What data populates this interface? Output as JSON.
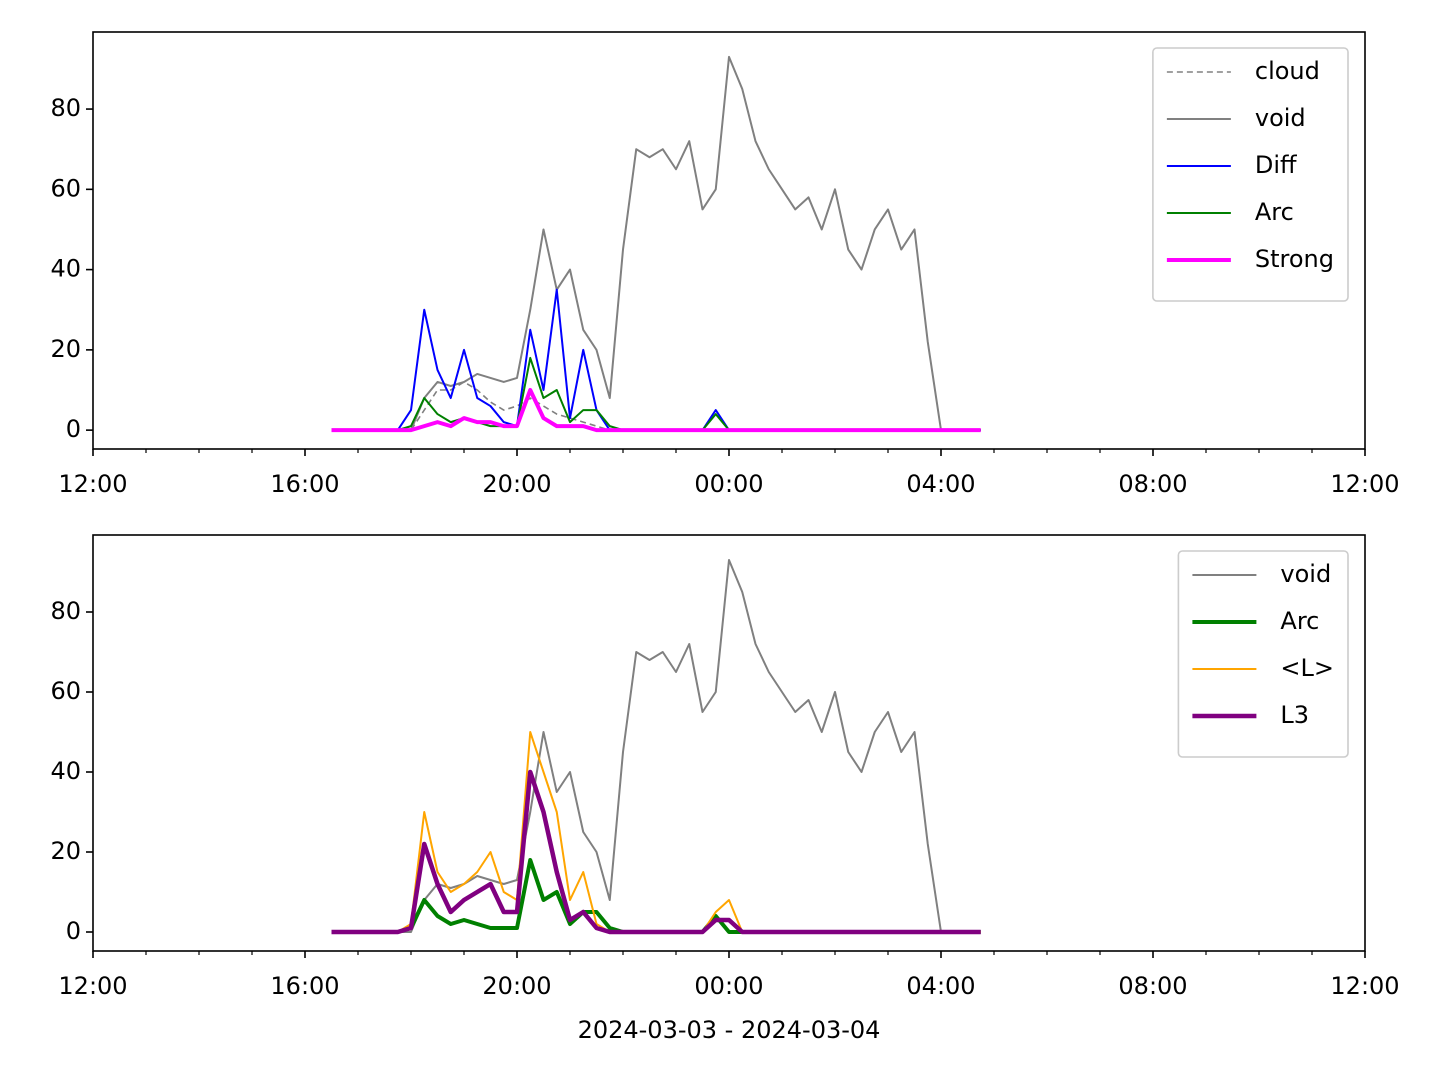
{
  "chart_data": [
    {
      "type": "line",
      "x": [
        16.5,
        16.75,
        17,
        17.25,
        17.5,
        17.75,
        18,
        18.25,
        18.5,
        18.75,
        19,
        19.25,
        19.5,
        19.75,
        20,
        20.25,
        20.5,
        20.75,
        21,
        21.25,
        21.5,
        21.75,
        22,
        22.25,
        22.5,
        22.75,
        23,
        23.25,
        23.5,
        23.75,
        24,
        24.25,
        24.5,
        24.75,
        25,
        25.25,
        25.5,
        25.75,
        26,
        26.25,
        26.5,
        26.75,
        27,
        27.25,
        27.5,
        27.75,
        28,
        28.25,
        28.5,
        28.75
      ],
      "series": [
        {
          "name": "cloud",
          "color": "#808080",
          "width": 1.6,
          "dash": true,
          "values": [
            0,
            0,
            0,
            0,
            0,
            0,
            0,
            5,
            10,
            10,
            12,
            10,
            7,
            5,
            6,
            8,
            6,
            4,
            3,
            2,
            1,
            0,
            0,
            0,
            0,
            0,
            0,
            0,
            0,
            0,
            0,
            0,
            0,
            0,
            0,
            0,
            0,
            0,
            0,
            0,
            0,
            0,
            0,
            0,
            0,
            0,
            0,
            0,
            0,
            0
          ]
        },
        {
          "name": "void",
          "color": "#808080",
          "width": 2,
          "values": [
            0,
            0,
            0,
            0,
            0,
            0,
            0,
            8,
            12,
            11,
            12,
            14,
            13,
            12,
            13,
            30,
            50,
            35,
            40,
            25,
            20,
            8,
            45,
            70,
            68,
            70,
            65,
            72,
            55,
            60,
            93,
            85,
            72,
            65,
            60,
            55,
            58,
            50,
            60,
            45,
            40,
            50,
            55,
            45,
            50,
            22,
            0,
            null,
            null,
            null
          ]
        },
        {
          "name": "Diff",
          "color": "#0000ff",
          "width": 2,
          "values": [
            0,
            0,
            0,
            0,
            0,
            0,
            5,
            30,
            15,
            8,
            20,
            8,
            6,
            2,
            1,
            25,
            10,
            35,
            3,
            20,
            5,
            0,
            0,
            0,
            0,
            0,
            0,
            0,
            0,
            5,
            0,
            0,
            0,
            0,
            0,
            0,
            0,
            0,
            0,
            0,
            0,
            0,
            0,
            0,
            0,
            0,
            0,
            0,
            0,
            0
          ]
        },
        {
          "name": "Arc",
          "color": "#008000",
          "width": 2,
          "values": [
            0,
            0,
            0,
            0,
            0,
            0,
            1,
            8,
            4,
            2,
            3,
            2,
            1,
            1,
            1,
            18,
            8,
            10,
            2,
            5,
            5,
            1,
            0,
            0,
            0,
            0,
            0,
            0,
            0,
            4,
            0,
            0,
            0,
            0,
            0,
            0,
            0,
            0,
            0,
            0,
            0,
            0,
            0,
            0,
            0,
            0,
            0,
            0,
            0,
            0
          ]
        },
        {
          "name": "Strong",
          "color": "#ff00ff",
          "width": 4,
          "values": [
            0,
            0,
            0,
            0,
            0,
            0,
            0,
            1,
            2,
            1,
            3,
            2,
            2,
            1,
            1,
            10,
            3,
            1,
            1,
            1,
            0,
            0,
            0,
            0,
            0,
            0,
            0,
            0,
            0,
            0,
            0,
            0,
            0,
            0,
            0,
            0,
            0,
            0,
            0,
            0,
            0,
            0,
            0,
            0,
            0,
            0,
            0,
            0,
            0,
            0
          ]
        }
      ],
      "xlim": [
        12,
        36
      ],
      "xticks": [
        {
          "value": 12,
          "label": "12:00"
        },
        {
          "value": 16,
          "label": "16:00"
        },
        {
          "value": 20,
          "label": "20:00"
        },
        {
          "value": 24,
          "label": "00:00"
        },
        {
          "value": 28,
          "label": "04:00"
        },
        {
          "value": 32,
          "label": "08:00"
        },
        {
          "value": 36,
          "label": "12:00"
        }
      ],
      "xminorticks": [
        13,
        14,
        15,
        17,
        18,
        19,
        21,
        22,
        23,
        25,
        26,
        27,
        29,
        30,
        31,
        33,
        34,
        35
      ],
      "ylim": [
        -4.7,
        99.2
      ],
      "yticks": [
        0,
        20,
        40,
        60,
        80
      ],
      "legend": "upper right"
    },
    {
      "type": "line",
      "x": [
        16.5,
        16.75,
        17,
        17.25,
        17.5,
        17.75,
        18,
        18.25,
        18.5,
        18.75,
        19,
        19.25,
        19.5,
        19.75,
        20,
        20.25,
        20.5,
        20.75,
        21,
        21.25,
        21.5,
        21.75,
        22,
        22.25,
        22.5,
        22.75,
        23,
        23.25,
        23.5,
        23.75,
        24,
        24.25,
        24.5,
        24.75,
        25,
        25.25,
        25.5,
        25.75,
        26,
        26.25,
        26.5,
        26.75,
        27,
        27.25,
        27.5,
        27.75,
        28,
        28.25,
        28.5,
        28.75
      ],
      "series": [
        {
          "name": "void",
          "color": "#808080",
          "width": 2,
          "values": [
            0,
            0,
            0,
            0,
            0,
            0,
            0,
            8,
            12,
            11,
            12,
            14,
            13,
            12,
            13,
            30,
            50,
            35,
            40,
            25,
            20,
            8,
            45,
            70,
            68,
            70,
            65,
            72,
            55,
            60,
            93,
            85,
            72,
            65,
            60,
            55,
            58,
            50,
            60,
            45,
            40,
            50,
            55,
            45,
            50,
            22,
            0,
            null,
            null,
            null
          ]
        },
        {
          "name": "Arc",
          "color": "#008000",
          "width": 4,
          "values": [
            0,
            0,
            0,
            0,
            0,
            0,
            1,
            8,
            4,
            2,
            3,
            2,
            1,
            1,
            1,
            18,
            8,
            10,
            2,
            5,
            5,
            1,
            0,
            0,
            0,
            0,
            0,
            0,
            0,
            4,
            0,
            0,
            0,
            0,
            0,
            0,
            0,
            0,
            0,
            0,
            0,
            0,
            0,
            0,
            0,
            0,
            0,
            0,
            0,
            0
          ]
        },
        {
          "name": "<L>",
          "color": "#ffa500",
          "width": 2,
          "values": [
            0,
            0,
            0,
            0,
            0,
            0,
            2,
            30,
            15,
            10,
            12,
            15,
            20,
            10,
            8,
            50,
            40,
            30,
            8,
            15,
            2,
            0,
            0,
            0,
            0,
            0,
            0,
            0,
            0,
            5,
            8,
            0,
            0,
            0,
            0,
            0,
            0,
            0,
            0,
            0,
            0,
            0,
            0,
            0,
            0,
            0,
            0,
            0,
            0,
            0
          ]
        },
        {
          "name": "L3",
          "color": "#800080",
          "width": 4.5,
          "values": [
            0,
            0,
            0,
            0,
            0,
            0,
            1,
            22,
            12,
            5,
            8,
            10,
            12,
            5,
            5,
            40,
            30,
            15,
            3,
            5,
            1,
            0,
            0,
            0,
            0,
            0,
            0,
            0,
            0,
            3,
            3,
            0,
            0,
            0,
            0,
            0,
            0,
            0,
            0,
            0,
            0,
            0,
            0,
            0,
            0,
            0,
            0,
            0,
            0,
            0
          ]
        }
      ],
      "xlim": [
        12,
        36
      ],
      "xticks": [
        {
          "value": 12,
          "label": "12:00"
        },
        {
          "value": 16,
          "label": "16:00"
        },
        {
          "value": 20,
          "label": "20:00"
        },
        {
          "value": 24,
          "label": "00:00"
        },
        {
          "value": 28,
          "label": "04:00"
        },
        {
          "value": 32,
          "label": "08:00"
        },
        {
          "value": 36,
          "label": "12:00"
        }
      ],
      "xminorticks": [
        13,
        14,
        15,
        17,
        18,
        19,
        21,
        22,
        23,
        25,
        26,
        27,
        29,
        30,
        31,
        33,
        34,
        35
      ],
      "ylim": [
        -4.75,
        99.25
      ],
      "yticks": [
        0,
        20,
        40,
        60,
        80
      ],
      "xlabel": "2024-03-03 - 2024-03-04",
      "legend": "upper right"
    }
  ]
}
